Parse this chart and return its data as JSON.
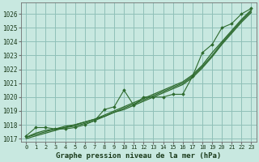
{
  "title": "Graphe pression niveau de la mer (hPa)",
  "bg_color": "#c8e8e0",
  "grid_color": "#90c0b8",
  "line_color": "#2d6a2d",
  "marker_color": "#2d6a2d",
  "xlim": [
    -0.5,
    23.5
  ],
  "ylim": [
    1016.8,
    1026.8
  ],
  "xticks": [
    0,
    1,
    2,
    3,
    4,
    5,
    6,
    7,
    8,
    9,
    10,
    11,
    12,
    13,
    14,
    15,
    16,
    17,
    18,
    19,
    20,
    21,
    22,
    23
  ],
  "yticks": [
    1017,
    1018,
    1019,
    1020,
    1021,
    1022,
    1023,
    1024,
    1025,
    1026
  ],
  "series_smooth": [
    [
      1017.1,
      1017.4,
      1017.6,
      1017.7,
      1017.9,
      1018.0,
      1018.2,
      1018.4,
      1018.7,
      1019.0,
      1019.3,
      1019.6,
      1019.9,
      1020.2,
      1020.5,
      1020.8,
      1021.1,
      1021.6,
      1022.3,
      1023.2,
      1024.0,
      1024.8,
      1025.6,
      1026.3
    ],
    [
      1017.1,
      1017.3,
      1017.5,
      1017.7,
      1017.8,
      1018.0,
      1018.2,
      1018.4,
      1018.6,
      1018.9,
      1019.2,
      1019.5,
      1019.8,
      1020.1,
      1020.4,
      1020.7,
      1021.0,
      1021.5,
      1022.2,
      1023.0,
      1023.9,
      1024.7,
      1025.5,
      1026.2
    ],
    [
      1017.0,
      1017.2,
      1017.4,
      1017.6,
      1017.8,
      1017.9,
      1018.1,
      1018.3,
      1018.6,
      1018.9,
      1019.1,
      1019.4,
      1019.7,
      1020.0,
      1020.3,
      1020.6,
      1020.9,
      1021.4,
      1022.1,
      1022.9,
      1023.8,
      1024.6,
      1025.4,
      1026.1
    ]
  ],
  "series_marker": [
    1017.2,
    1017.8,
    1017.8,
    1017.7,
    1017.7,
    1017.8,
    1018.0,
    1018.3,
    1019.1,
    1019.3,
    1020.5,
    1019.4,
    1020.0,
    1020.0,
    1020.0,
    1020.2,
    1020.2,
    1021.5,
    1023.2,
    1023.8,
    1025.0,
    1025.3,
    1026.0,
    1026.4
  ]
}
